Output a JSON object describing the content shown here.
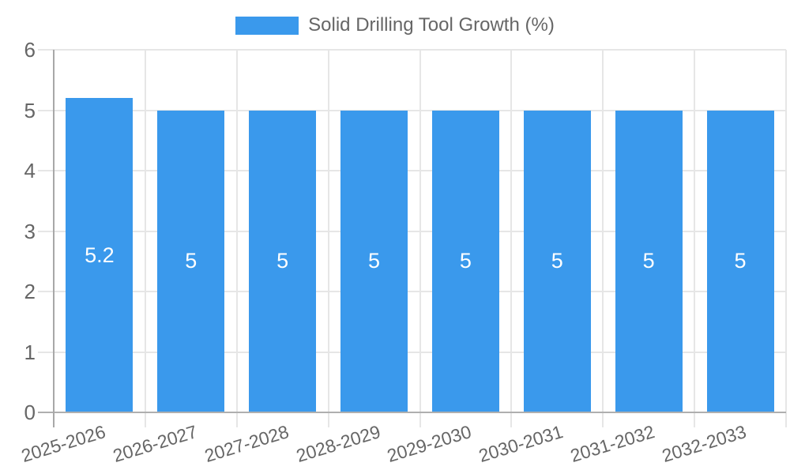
{
  "chart_data": {
    "type": "bar",
    "legend_label": "Solid Drilling Tool Growth (%)",
    "legend_position": "top",
    "categories": [
      "2025-2026",
      "2026-2027",
      "2027-2028",
      "2028-2029",
      "2029-2030",
      "2030-2031",
      "2031-2032",
      "2032-2033"
    ],
    "series": [
      {
        "name": "Solid Drilling Tool Growth (%)",
        "values": [
          5.2,
          5,
          5,
          5,
          5,
          5,
          5,
          5
        ]
      }
    ],
    "bar_value_labels": [
      "5.2",
      "5",
      "5",
      "5",
      "5",
      "5",
      "5",
      "5"
    ],
    "xlabel": "",
    "ylabel": "",
    "ylim": [
      0,
      6
    ],
    "yticks": [
      0,
      1,
      2,
      3,
      4,
      5,
      6
    ],
    "grid": true,
    "colors": {
      "bar": "#3A99EC",
      "grid_line": "#E6E6E6",
      "axis_line": "#A8A8A8",
      "zero_line": "#AFAFAF",
      "tick_text": "#666666",
      "bar_label_text": "#FFFFFF"
    }
  }
}
